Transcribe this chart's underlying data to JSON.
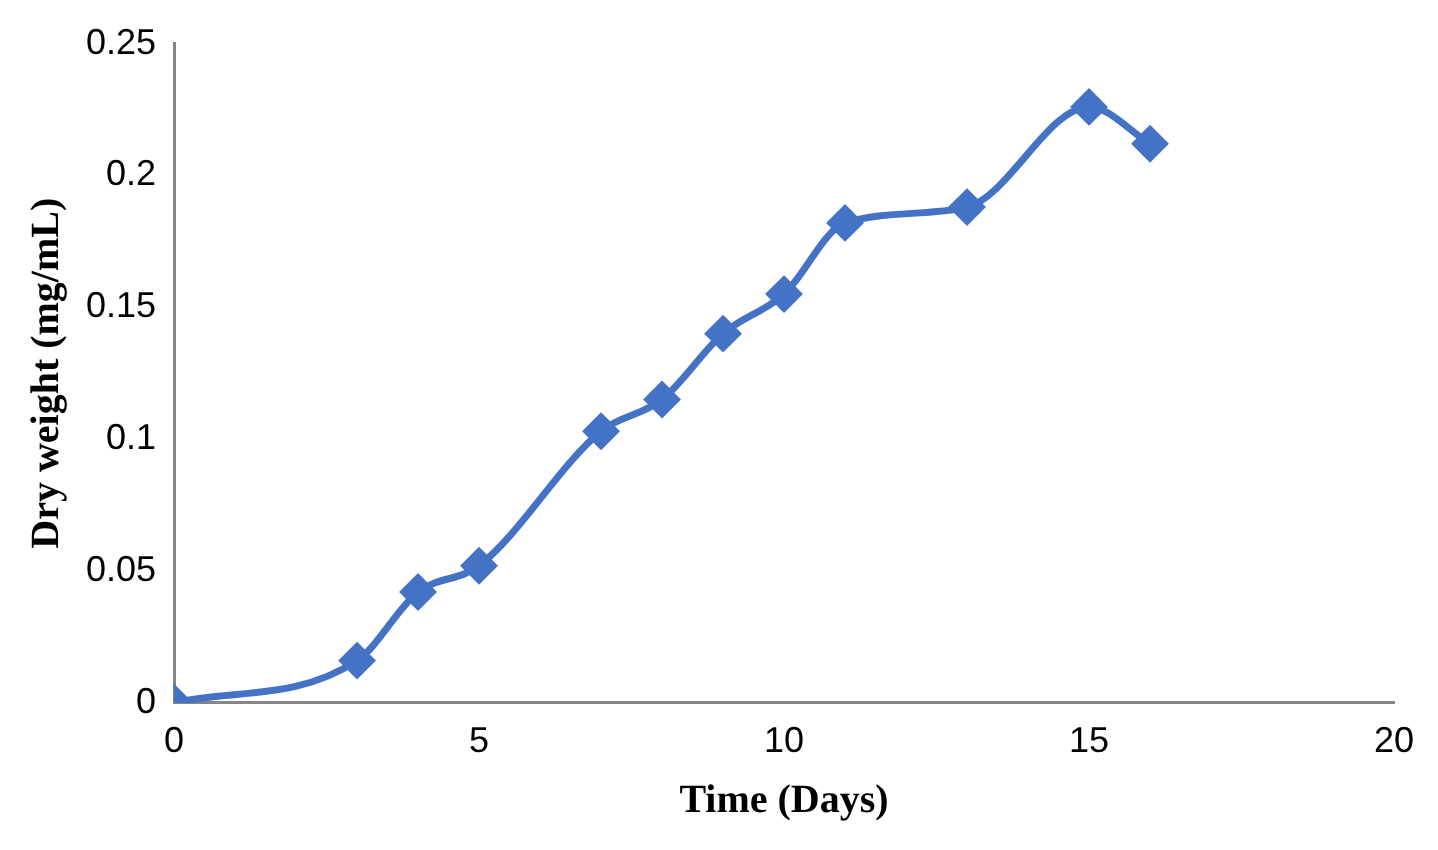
{
  "chart_data": {
    "type": "line",
    "xlabel": "Time (Days)",
    "ylabel": "Dry weight (mg/mL)",
    "x": [
      0,
      3,
      4,
      5,
      7,
      8,
      9,
      10,
      11,
      13,
      15,
      16
    ],
    "series": [
      {
        "color": "#4472c4",
        "values": [
          0,
          0.016,
          0.042,
          0.052,
          0.103,
          0.115,
          0.14,
          0.155,
          0.182,
          0.188,
          0.226,
          0.212
        ]
      }
    ],
    "xlim": [
      0,
      20
    ],
    "xticks": [
      0,
      5,
      10,
      15,
      20
    ],
    "ylim": [
      0,
      0.25
    ],
    "yticks": [
      0,
      0.05,
      0.1,
      0.15,
      0.2,
      0.25
    ],
    "grid": false,
    "legend": false,
    "marker": "diamond",
    "line_style": "solid"
  }
}
